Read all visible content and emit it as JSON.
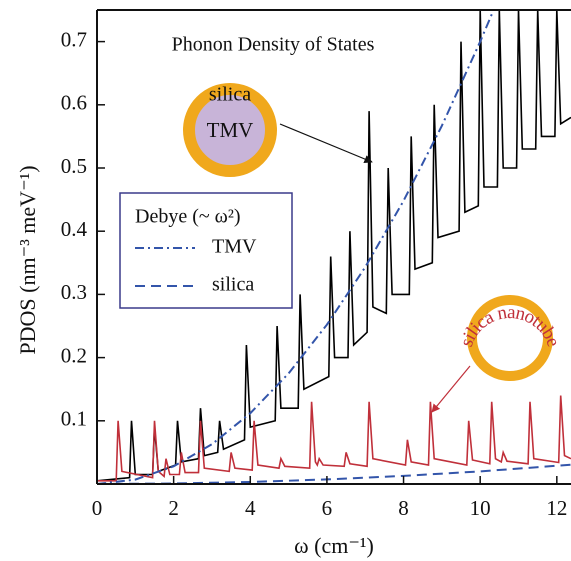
{
  "chart_data": {
    "type": "line",
    "title": "Phonon Density of States",
    "x_label": "ω (cm⁻¹)",
    "y_label": "PDOS (nm⁻³ meV⁻¹)",
    "xlim": [
      0,
      12.37
    ],
    "ylim": [
      0,
      0.75
    ],
    "xticks": [
      0,
      2,
      4,
      6,
      8,
      10,
      12
    ],
    "yticks": [
      0.1,
      0.2,
      0.3,
      0.4,
      0.5,
      0.6,
      0.7
    ],
    "legend_title": "Debye (~ ω²)",
    "annotations": {
      "shell": "silica",
      "core": "TMV",
      "nanotube": "silica nanotube"
    },
    "series": [
      {
        "color": "#000000",
        "style": "solid",
        "x": [
          0,
          0.85,
          0.9,
          1.0,
          1.45,
          1.5,
          1.6,
          2.05,
          2.1,
          2.2,
          2.65,
          2.7,
          2.8,
          3.15,
          3.2,
          3.3,
          3.85,
          3.9,
          4.0,
          4.65,
          4.7,
          4.8,
          5.25,
          5.3,
          5.4,
          6.05,
          6.1,
          6.2,
          6.55,
          6.6,
          6.7,
          7.05,
          7.1,
          7.2,
          7.55,
          7.6,
          7.7,
          8.15,
          8.2,
          8.3,
          8.75,
          8.8,
          8.9,
          9.45,
          9.5,
          9.6,
          9.95,
          10.0,
          10.1,
          10.45,
          10.5,
          10.6,
          10.95,
          11.0,
          11.1,
          11.45,
          11.5,
          11.6,
          11.95,
          12.0,
          12.1,
          12.37
        ],
        "values": [
          0.005,
          0.01,
          0.1,
          0.015,
          0.015,
          0.09,
          0.02,
          0.03,
          0.1,
          0.035,
          0.04,
          0.12,
          0.045,
          0.05,
          0.1,
          0.055,
          0.07,
          0.22,
          0.09,
          0.1,
          0.25,
          0.12,
          0.12,
          0.3,
          0.15,
          0.17,
          0.36,
          0.2,
          0.2,
          0.4,
          0.22,
          0.24,
          0.59,
          0.28,
          0.27,
          0.5,
          0.3,
          0.3,
          0.55,
          0.34,
          0.35,
          0.6,
          0.39,
          0.4,
          0.7,
          0.43,
          0.44,
          0.75,
          0.47,
          0.47,
          0.75,
          0.5,
          0.5,
          0.75,
          0.53,
          0.53,
          0.75,
          0.55,
          0.55,
          0.75,
          0.57,
          0.58
        ]
      },
      {
        "color": "#c0303a",
        "style": "solid",
        "x": [
          0,
          0.5,
          0.55,
          0.65,
          1.45,
          1.5,
          1.6,
          1.75,
          1.8,
          1.9,
          2.15,
          2.2,
          2.3,
          2.65,
          2.7,
          2.8,
          3.45,
          3.5,
          3.6,
          4.05,
          4.1,
          4.2,
          4.75,
          4.8,
          4.9,
          5.55,
          5.6,
          5.7,
          5.75,
          5.8,
          5.9,
          6.45,
          6.5,
          6.6,
          7.05,
          7.1,
          7.2,
          8.05,
          8.1,
          8.2,
          8.65,
          8.7,
          8.8,
          9.65,
          9.7,
          9.8,
          10.25,
          10.3,
          10.4,
          10.55,
          10.6,
          10.7,
          11.25,
          11.3,
          11.4,
          12.05,
          12.1,
          12.2,
          12.37
        ],
        "values": [
          0.005,
          0.005,
          0.1,
          0.02,
          0.01,
          0.1,
          0.02,
          0.012,
          0.04,
          0.015,
          0.015,
          0.05,
          0.018,
          0.018,
          0.1,
          0.025,
          0.02,
          0.05,
          0.025,
          0.022,
          0.1,
          0.03,
          0.025,
          0.04,
          0.028,
          0.025,
          0.13,
          0.035,
          0.03,
          0.04,
          0.03,
          0.028,
          0.05,
          0.032,
          0.028,
          0.13,
          0.04,
          0.03,
          0.07,
          0.035,
          0.03,
          0.13,
          0.04,
          0.03,
          0.1,
          0.038,
          0.032,
          0.13,
          0.04,
          0.035,
          0.05,
          0.036,
          0.032,
          0.13,
          0.04,
          0.034,
          0.14,
          0.045,
          0.04
        ]
      },
      {
        "name": "TMV",
        "color": "#3355aa",
        "style": "dashdot",
        "x": [
          0,
          1,
          2,
          3,
          4,
          5,
          6,
          7,
          8,
          9,
          10,
          10.35
        ],
        "values": [
          0,
          0.007,
          0.028,
          0.063,
          0.112,
          0.175,
          0.252,
          0.343,
          0.448,
          0.567,
          0.7,
          0.75
        ]
      },
      {
        "name": "silica",
        "color": "#3355aa",
        "style": "dashed",
        "x": [
          0,
          2,
          4,
          6,
          8,
          10,
          12.37
        ],
        "values": [
          0,
          0.0008,
          0.0032,
          0.0072,
          0.0128,
          0.02,
          0.0306
        ]
      }
    ]
  }
}
